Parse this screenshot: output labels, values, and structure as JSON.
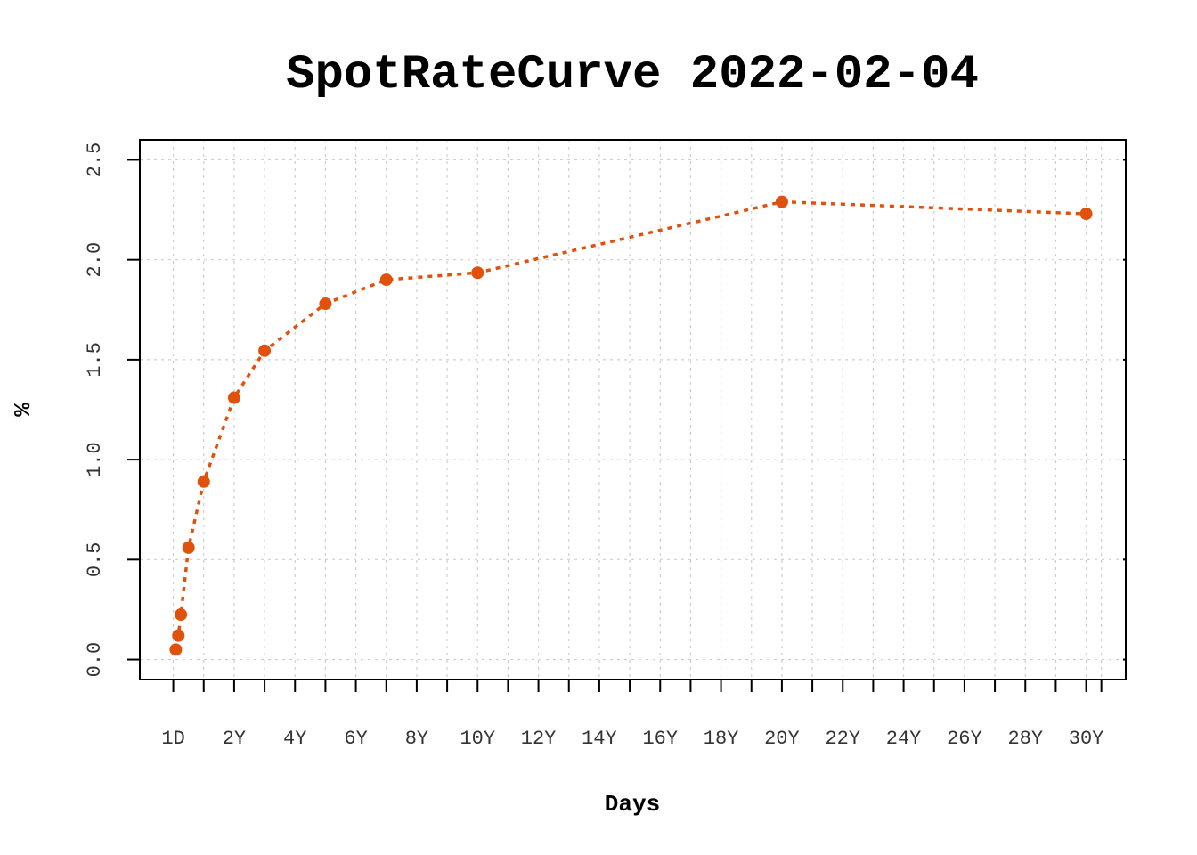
{
  "chart_data": {
    "type": "line",
    "title": "SpotRateCurve 2022-02-04",
    "xlabel": "Days",
    "ylabel": "%",
    "color": "#E0520C",
    "x_unit": "years",
    "x_tick_labels": [
      "1D",
      "2Y",
      "4Y",
      "6Y",
      "8Y",
      "10Y",
      "12Y",
      "14Y",
      "16Y",
      "18Y",
      "20Y",
      "22Y",
      "24Y",
      "26Y",
      "28Y",
      "30Y"
    ],
    "x_tick_values": [
      0,
      2,
      4,
      6,
      8,
      10,
      12,
      14,
      16,
      18,
      20,
      22,
      24,
      26,
      28,
      30
    ],
    "x_minor_tick_values": [
      1,
      3,
      5,
      7,
      9,
      11,
      13,
      15,
      17,
      19,
      21,
      23,
      25,
      27,
      29,
      30.5
    ],
    "y_tick_labels": [
      "0.0",
      "0.5",
      "1.0",
      "1.5",
      "2.0",
      "2.5"
    ],
    "y_tick_values": [
      0,
      0.5,
      1.0,
      1.5,
      2.0,
      2.5
    ],
    "xlim": [
      -1.1,
      31.3
    ],
    "ylim": [
      -0.1,
      2.6
    ],
    "grid": true,
    "series": [
      {
        "x": [
          0.083,
          0.167,
          0.25,
          0.5,
          1,
          2,
          3,
          5,
          7,
          10,
          20,
          30
        ],
        "y": [
          0.05,
          0.12,
          0.225,
          0.56,
          0.89,
          1.31,
          1.545,
          1.78,
          1.9,
          1.935,
          2.29,
          2.23
        ]
      }
    ]
  }
}
